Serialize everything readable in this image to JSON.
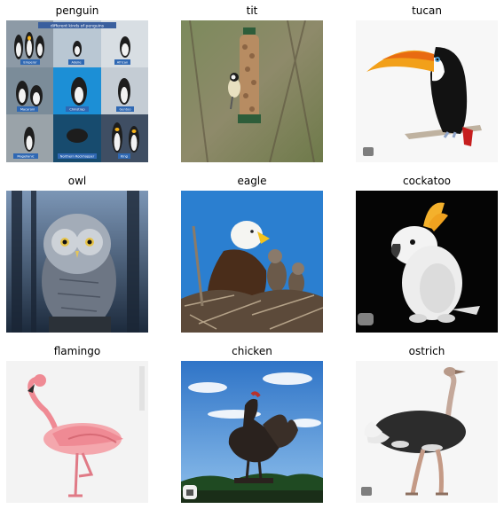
{
  "figure": {
    "panels": [
      {
        "title": "penguin",
        "subject": "penguin-collage-image"
      },
      {
        "title": "tit",
        "subject": "tit-on-feeder-image"
      },
      {
        "title": "tucan",
        "subject": "toucan-image"
      },
      {
        "title": "owl",
        "subject": "owl-image"
      },
      {
        "title": "eagle",
        "subject": "eagle-nest-image"
      },
      {
        "title": "cockatoo",
        "subject": "cockatoo-plush-image"
      },
      {
        "title": "flamingo",
        "subject": "flamingo-illustration-image"
      },
      {
        "title": "chicken",
        "subject": "rooster-silhouette-image"
      },
      {
        "title": "ostrich",
        "subject": "ostrich-image"
      }
    ],
    "penguin_collage_labels": [
      "Emperor",
      "Adelie",
      "African",
      "Macaroni",
      "Chinstrap",
      "Gentoo",
      "Magellanic",
      "Northern Rockhopper",
      "King"
    ],
    "penguin_collage_header": "different kinds of penguins",
    "colors": {
      "background": "#ffffff",
      "title_text": "#000000"
    }
  }
}
